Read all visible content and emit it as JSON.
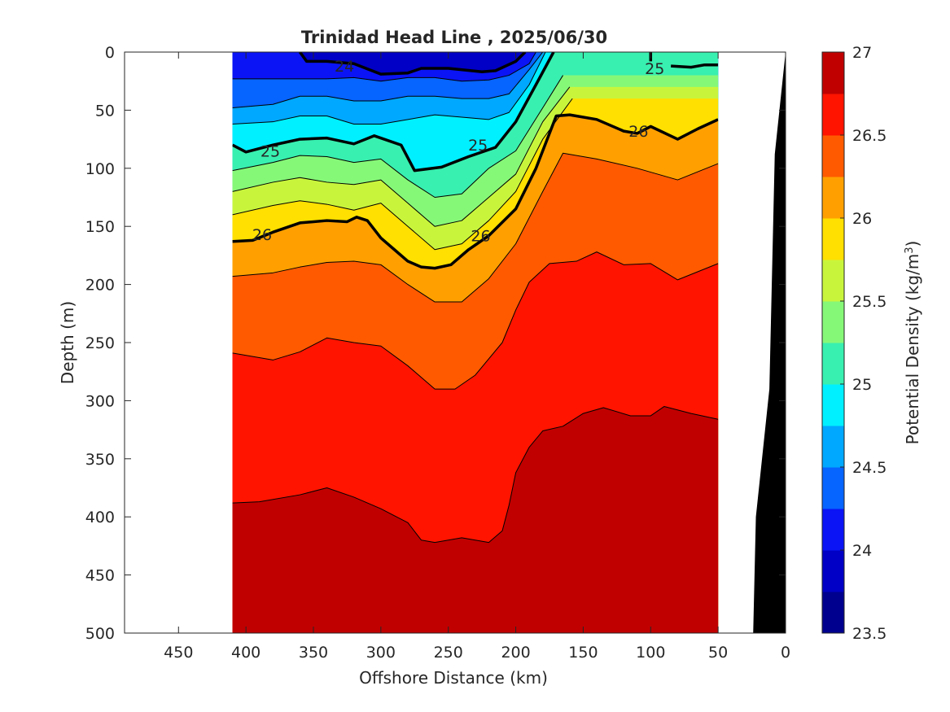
{
  "chart_data": {
    "type": "heatmap",
    "title": "Trinidad Head Line , 2025/06/30",
    "xlabel": "Offshore Distance (km)",
    "ylabel": "Depth (m)",
    "colorbar_label": "Potential Density (kg/m",
    "colorbar_label_sup": "3",
    "colorbar_label_close": ")",
    "x_reversed": true,
    "xlim": [
      0,
      490
    ],
    "ylim": [
      0,
      500
    ],
    "y_reversed": true,
    "xticks": [
      450,
      400,
      350,
      300,
      250,
      200,
      150,
      100,
      50,
      0
    ],
    "xtick_labels": [
      "450",
      "400",
      "350",
      "300",
      "250",
      "200",
      "150",
      "100",
      "50",
      "0"
    ],
    "yticks": [
      0,
      50,
      100,
      150,
      200,
      250,
      300,
      350,
      400,
      450,
      500
    ],
    "ytick_labels": [
      "0",
      "50",
      "100",
      "150",
      "200",
      "250",
      "300",
      "350",
      "400",
      "450",
      "500"
    ],
    "data_x_range": [
      50,
      410
    ],
    "clim": [
      23.5,
      27
    ],
    "cbar_ticks": [
      23.5,
      24,
      24.5,
      25,
      25.5,
      26,
      26.5,
      27
    ],
    "cbar_tick_labels": [
      "23.5",
      "24",
      "24.5",
      "25",
      "25.5",
      "26",
      "26.5",
      "27"
    ],
    "levels": [
      23.5,
      23.75,
      24,
      24.25,
      24.5,
      24.75,
      25,
      25.25,
      25.5,
      25.75,
      26,
      26.25,
      26.5,
      26.75,
      27
    ],
    "colormap": [
      "#00008f",
      "#0000c6",
      "#0a14f5",
      "#0664ff",
      "#00a8ff",
      "#00f0ff",
      "#38f0b0",
      "#86f878",
      "#c8f53c",
      "#ffe000",
      "#ffa000",
      "#ff5a00",
      "#ff1400",
      "#c00000"
    ],
    "bold_contour_levels": [
      24,
      25,
      26
    ],
    "contour_labels": [
      {
        "text": "24",
        "x": 327,
        "y": 12
      },
      {
        "text": "25",
        "x": 382,
        "y": 85
      },
      {
        "text": "25",
        "x": 228,
        "y": 80
      },
      {
        "text": "26",
        "x": 388,
        "y": 157
      },
      {
        "text": "26",
        "x": 226,
        "y": 158
      },
      {
        "text": "25",
        "x": 97,
        "y": 14
      },
      {
        "text": "26",
        "x": 109,
        "y": 68
      }
    ],
    "isopycnals": [
      {
        "level": 24.0,
        "x": [
          360,
          355,
          340,
          320,
          300,
          280,
          270,
          250,
          225,
          215,
          200,
          193
        ],
        "y": [
          0,
          8,
          8,
          10,
          19,
          18,
          14,
          14,
          17,
          16,
          8,
          0
        ]
      },
      {
        "level": 24.25,
        "x": [
          410,
          380,
          360,
          340,
          320,
          300,
          280,
          260,
          240,
          220,
          205,
          190,
          185
        ],
        "y": [
          23,
          23,
          23,
          23,
          22,
          25,
          22,
          22,
          25,
          24,
          20,
          10,
          0
        ]
      },
      {
        "level": 24.5,
        "x": [
          410,
          380,
          360,
          340,
          320,
          300,
          280,
          260,
          240,
          220,
          205,
          190,
          180
        ],
        "y": [
          48,
          45,
          38,
          38,
          42,
          42,
          38,
          38,
          40,
          40,
          36,
          15,
          0
        ]
      },
      {
        "level": 24.75,
        "x": [
          410,
          380,
          360,
          340,
          320,
          300,
          280,
          260,
          240,
          220,
          205,
          190,
          178
        ],
        "y": [
          62,
          60,
          55,
          55,
          62,
          62,
          58,
          54,
          56,
          58,
          52,
          28,
          0
        ]
      },
      {
        "level": 25.0,
        "x": [
          410,
          400,
          380,
          360,
          340,
          320,
          305,
          285,
          275,
          255,
          235,
          215,
          200,
          185,
          172
        ],
        "y": [
          80,
          86,
          80,
          75,
          74,
          79,
          72,
          80,
          102,
          99,
          90,
          82,
          60,
          28,
          0
        ]
      },
      {
        "level": 25.25,
        "x": [
          410,
          380,
          360,
          340,
          320,
          300,
          280,
          260,
          240,
          220,
          200,
          180,
          165
        ],
        "y": [
          102,
          95,
          89,
          90,
          95,
          92,
          110,
          125,
          122,
          100,
          85,
          48,
          20
        ]
      },
      {
        "level": 25.5,
        "x": [
          410,
          380,
          360,
          340,
          320,
          300,
          280,
          260,
          240,
          220,
          200,
          180,
          160
        ],
        "y": [
          120,
          112,
          108,
          112,
          114,
          110,
          130,
          150,
          145,
          125,
          105,
          60,
          30
        ]
      },
      {
        "level": 25.75,
        "x": [
          410,
          380,
          360,
          340,
          320,
          300,
          280,
          260,
          240,
          220,
          200,
          180,
          158
        ],
        "y": [
          140,
          132,
          128,
          131,
          136,
          130,
          150,
          170,
          165,
          145,
          120,
          75,
          40
        ]
      },
      {
        "level": 26.0,
        "x": [
          410,
          395,
          380,
          360,
          340,
          325,
          318,
          310,
          300,
          290,
          280,
          270,
          260,
          248,
          235,
          220,
          200,
          185,
          170,
          160,
          140,
          120,
          110,
          100,
          80,
          65,
          50
        ],
        "y": [
          163,
          162,
          155,
          147,
          145,
          146,
          142,
          145,
          160,
          170,
          180,
          185,
          186,
          183,
          170,
          158,
          135,
          100,
          55,
          54,
          58,
          68,
          70,
          64,
          75,
          66,
          58
        ]
      },
      {
        "level": 26.25,
        "x": [
          410,
          380,
          360,
          340,
          320,
          300,
          280,
          260,
          240,
          220,
          200,
          180,
          165,
          140,
          110,
          80,
          50
        ],
        "y": [
          193,
          190,
          185,
          181,
          180,
          183,
          200,
          215,
          215,
          195,
          165,
          120,
          87,
          92,
          100,
          110,
          96
        ]
      },
      {
        "level": 26.5,
        "x": [
          410,
          380,
          360,
          340,
          320,
          300,
          280,
          260,
          245,
          230,
          210,
          200,
          190,
          175,
          155,
          140,
          120,
          100,
          80,
          65,
          50
        ],
        "y": [
          259,
          265,
          258,
          246,
          250,
          253,
          270,
          290,
          290,
          278,
          250,
          222,
          198,
          182,
          180,
          172,
          183,
          182,
          196,
          189,
          182
        ]
      },
      {
        "level": 26.75,
        "x": [
          410,
          390,
          360,
          340,
          320,
          300,
          280,
          270,
          260,
          240,
          220,
          210,
          205,
          200,
          190,
          180,
          165,
          150,
          135,
          115,
          100,
          90,
          70,
          50
        ],
        "y": [
          388,
          387,
          381,
          375,
          383,
          393,
          405,
          420,
          422,
          418,
          422,
          412,
          390,
          362,
          340,
          326,
          322,
          311,
          306,
          313,
          313,
          305,
          311,
          316
        ]
      }
    ],
    "bathymetry": {
      "x": [
        0,
        8,
        12,
        22,
        24,
        30,
        50
      ],
      "y": [
        0,
        88,
        290,
        400,
        500,
        500,
        500
      ]
    }
  }
}
